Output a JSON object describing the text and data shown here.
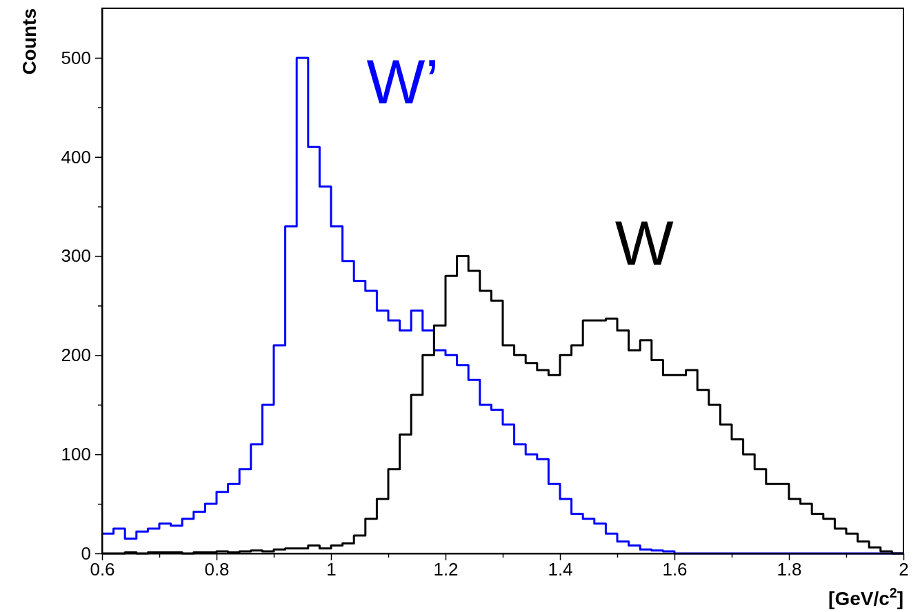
{
  "chart_data": {
    "type": "histogram",
    "xlabel": "[GeV/c$^{2}$]",
    "ylabel": "Counts",
    "bins": [
      0.6,
      0.62,
      0.64,
      0.66,
      0.68,
      0.7,
      0.72,
      0.74,
      0.76,
      0.78,
      0.8,
      0.82,
      0.84,
      0.86,
      0.88,
      0.9,
      0.92,
      0.94,
      0.96,
      0.98,
      1.0,
      1.02,
      1.04,
      1.06,
      1.08,
      1.1,
      1.12,
      1.14,
      1.16,
      1.18,
      1.2,
      1.22,
      1.24,
      1.26,
      1.28,
      1.3,
      1.32,
      1.34,
      1.36,
      1.38,
      1.4,
      1.42,
      1.44,
      1.46,
      1.48,
      1.5,
      1.52,
      1.54,
      1.56,
      1.58,
      1.6,
      1.62,
      1.64,
      1.66,
      1.68,
      1.7,
      1.72,
      1.74,
      1.76,
      1.78,
      1.8,
      1.82,
      1.84,
      1.86,
      1.88,
      1.9,
      1.92,
      1.94,
      1.96,
      1.98,
      2.0
    ],
    "series": [
      {
        "color": "#0000ff",
        "values": [
          20,
          25,
          15,
          22,
          25,
          30,
          28,
          35,
          42,
          50,
          62,
          70,
          85,
          110,
          150,
          210,
          330,
          500,
          410,
          370,
          330,
          295,
          275,
          265,
          245,
          235,
          225,
          245,
          225,
          205,
          200,
          190,
          175,
          150,
          145,
          130,
          110,
          100,
          95,
          70,
          55,
          40,
          35,
          30,
          20,
          12,
          8,
          4,
          3,
          2,
          0,
          0,
          0,
          0,
          0,
          0,
          0,
          0,
          0,
          0,
          0,
          0,
          0,
          0,
          0,
          0,
          0,
          0,
          0,
          0
        ]
      },
      {
        "color": "#000000",
        "values": [
          0,
          0,
          1,
          0,
          1,
          1,
          1,
          0,
          1,
          1,
          2,
          1,
          2,
          3,
          2,
          4,
          5,
          5,
          8,
          5,
          8,
          10,
          18,
          35,
          55,
          85,
          120,
          160,
          200,
          230,
          280,
          300,
          285,
          265,
          255,
          210,
          200,
          192,
          185,
          180,
          200,
          210,
          235,
          235,
          237,
          225,
          205,
          215,
          195,
          180,
          180,
          185,
          165,
          150,
          130,
          115,
          100,
          85,
          70,
          70,
          55,
          50,
          40,
          35,
          25,
          20,
          12,
          6,
          2,
          0
        ]
      }
    ],
    "annotations": [
      "W’",
      "W"
    ],
    "xlim": [
      0.6,
      2.0
    ],
    "xticks": [
      0.6,
      {
        "value": 0.7,
        "label": null
      },
      0.8,
      {
        "value": 0.9,
        "label": null
      },
      1,
      {
        "value": 1.1,
        "label": null
      },
      1.2,
      {
        "value": 1.3,
        "label": null
      },
      1.4,
      {
        "value": 1.5,
        "label": null
      },
      1.6,
      {
        "value": 1.7,
        "label": null
      },
      1.8,
      {
        "value": 1.9,
        "label": null
      },
      2
    ],
    "ylim": [
      0,
      550
    ],
    "yticks": [
      0,
      {
        "value": 50,
        "label": null
      },
      100,
      {
        "value": 150,
        "label": null
      },
      200,
      {
        "value": 250,
        "label": null
      },
      300,
      {
        "value": 350,
        "label": null
      },
      400,
      {
        "value": 450,
        "label": null
      },
      500
    ]
  }
}
